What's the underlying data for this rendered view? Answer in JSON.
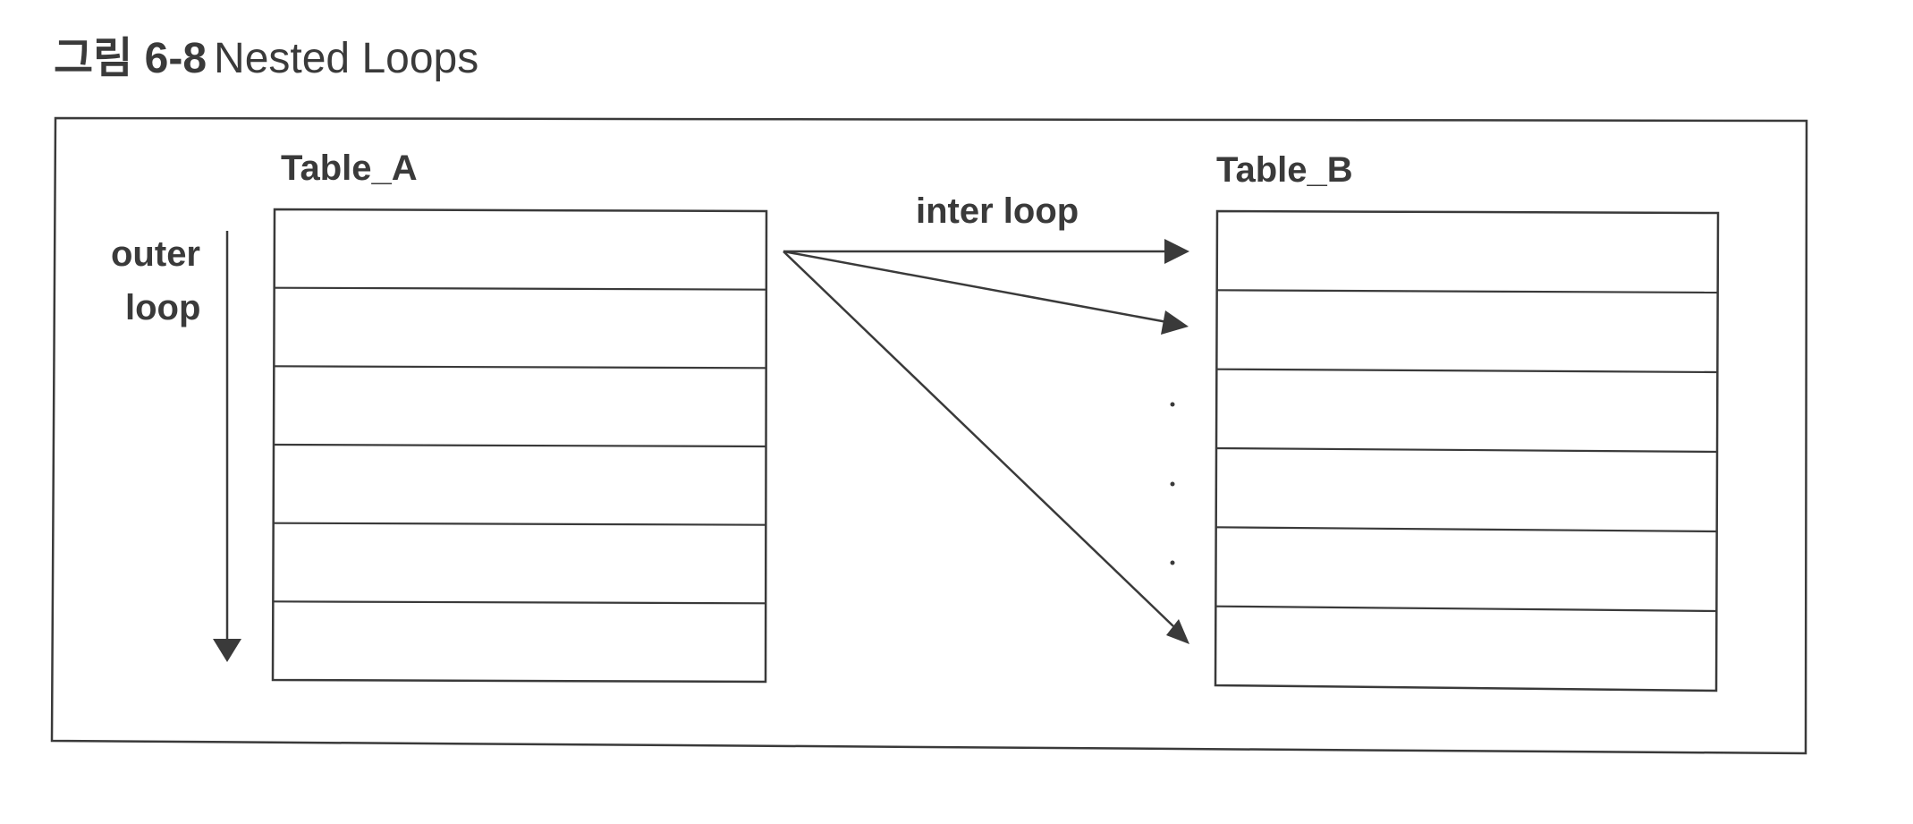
{
  "figure": {
    "prefix": "그림 6-8",
    "title": "Nested Loops"
  },
  "diagram": {
    "table_a": {
      "label": "Table_A",
      "row_count": 6
    },
    "table_b": {
      "label": "Table_B",
      "row_count": 6
    },
    "outer_loop_label": [
      "outer",
      "loop"
    ],
    "inner_loop_label": "inter loop",
    "ellipsis": "· · ·"
  },
  "colors": {
    "stroke": "#3a3a3a",
    "text": "#3a3a3a",
    "background": "#ffffff"
  }
}
